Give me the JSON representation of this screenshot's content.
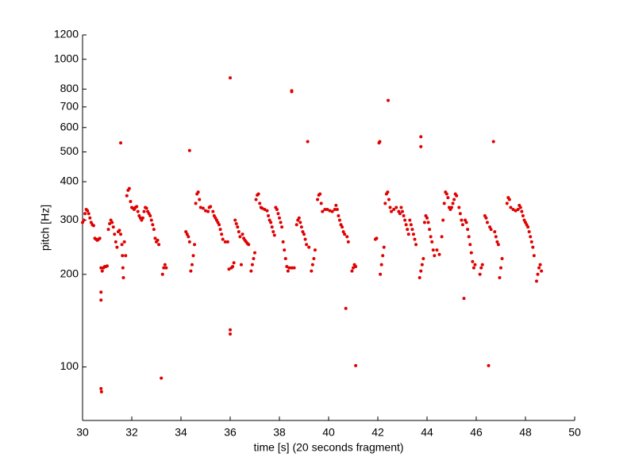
{
  "chart_data": {
    "type": "scatter",
    "color": "#e00000",
    "log_y": true,
    "xlabel": "time [s] (20 seconds fragment)",
    "ylabel": "pitch [Hz]",
    "xlim": [
      30,
      50
    ],
    "xticks": [
      30,
      32,
      34,
      36,
      38,
      40,
      42,
      44,
      46,
      48,
      50
    ],
    "ylim": [
      67,
      1200
    ],
    "yticks": [
      100,
      200,
      300,
      400,
      500,
      600,
      700,
      800,
      1000,
      1200
    ],
    "x": [
      30.0,
      30.05,
      30.1,
      30.15,
      30.2,
      30.25,
      30.3,
      30.35,
      30.4,
      30.45,
      30.5,
      30.55,
      30.6,
      30.65,
      30.7,
      30.75,
      30.75,
      30.75,
      30.75,
      30.77,
      30.8,
      30.85,
      30.9,
      30.95,
      31.0,
      31.05,
      31.1,
      31.15,
      31.2,
      31.25,
      31.3,
      31.35,
      31.4,
      31.45,
      31.5,
      31.55,
      31.55,
      31.6,
      31.62,
      31.64,
      31.66,
      31.7,
      31.75,
      31.8,
      31.85,
      31.9,
      31.95,
      32.0,
      32.05,
      32.1,
      32.15,
      32.2,
      32.25,
      32.3,
      32.35,
      32.4,
      32.45,
      32.5,
      32.55,
      32.6,
      32.65,
      32.7,
      32.75,
      32.8,
      32.85,
      32.9,
      32.95,
      33.0,
      33.05,
      33.1,
      33.2,
      33.25,
      33.3,
      33.35,
      33.4,
      34.2,
      34.25,
      34.3,
      34.35,
      34.35,
      34.4,
      34.45,
      34.5,
      34.55,
      34.6,
      34.65,
      34.7,
      34.75,
      34.8,
      34.9,
      35.0,
      35.1,
      35.15,
      35.2,
      35.3,
      35.35,
      35.4,
      35.45,
      35.5,
      35.55,
      35.6,
      35.65,
      35.7,
      35.8,
      35.9,
      35.95,
      36.0,
      36.0,
      36.0,
      36.05,
      36.1,
      36.15,
      36.2,
      36.25,
      36.3,
      36.35,
      36.4,
      36.45,
      36.5,
      36.55,
      36.6,
      36.65,
      36.7,
      36.75,
      36.85,
      36.9,
      36.95,
      37.0,
      37.05,
      37.1,
      37.15,
      37.2,
      37.25,
      37.3,
      37.4,
      37.5,
      37.55,
      37.6,
      37.65,
      37.7,
      37.75,
      37.8,
      37.85,
      37.9,
      37.95,
      38.0,
      38.05,
      38.1,
      38.15,
      38.2,
      38.25,
      38.3,
      38.35,
      38.5,
      38.5,
      38.4,
      38.5,
      38.6,
      38.7,
      38.75,
      38.8,
      38.85,
      38.9,
      38.95,
      39.0,
      39.05,
      39.1,
      39.15,
      39.2,
      39.3,
      39.35,
      39.4,
      39.45,
      39.55,
      39.6,
      39.65,
      39.7,
      39.75,
      39.85,
      39.95,
      40.05,
      40.15,
      40.25,
      40.3,
      40.35,
      40.4,
      40.45,
      40.5,
      40.55,
      40.6,
      40.65,
      40.7,
      40.75,
      40.8,
      40.95,
      41.0,
      41.05,
      41.1,
      41.1,
      41.9,
      41.95,
      42.05,
      42.08,
      42.1,
      42.15,
      42.2,
      42.25,
      42.3,
      42.35,
      42.4,
      42.42,
      42.45,
      42.5,
      42.55,
      42.65,
      42.75,
      42.85,
      42.9,
      42.95,
      43.0,
      43.05,
      43.1,
      43.15,
      43.2,
      43.25,
      43.3,
      43.35,
      43.4,
      43.45,
      43.5,
      43.55,
      43.7,
      43.75,
      43.8,
      43.85,
      43.75,
      43.75,
      43.9,
      43.95,
      44.0,
      44.05,
      44.1,
      44.15,
      44.2,
      44.25,
      44.3,
      44.4,
      44.5,
      44.6,
      44.65,
      44.7,
      44.75,
      44.8,
      44.85,
      44.9,
      44.95,
      45.0,
      45.05,
      45.1,
      45.15,
      45.2,
      45.3,
      45.35,
      45.4,
      45.45,
      45.5,
      45.55,
      45.6,
      45.65,
      45.7,
      45.75,
      45.8,
      45.85,
      45.9,
      45.95,
      46.15,
      46.2,
      46.25,
      46.35,
      46.4,
      46.45,
      46.5,
      46.55,
      46.6,
      46.7,
      46.75,
      46.8,
      46.85,
      46.9,
      46.95,
      47.0,
      47.05,
      47.25,
      47.3,
      47.35,
      47.4,
      47.5,
      47.6,
      47.7,
      47.75,
      47.8,
      47.85,
      47.9,
      47.95,
      48.0,
      48.05,
      48.1,
      48.15,
      48.2,
      48.25,
      48.3,
      48.35,
      48.45,
      48.5,
      48.55,
      48.6,
      48.65
    ],
    "values": [
      295,
      300,
      315,
      325,
      322,
      315,
      305,
      295,
      290,
      288,
      262,
      260,
      258,
      260,
      262,
      210,
      175,
      165,
      85,
      83,
      205,
      210,
      212,
      212,
      213,
      280,
      292,
      300,
      295,
      285,
      270,
      255,
      245,
      275,
      278,
      535,
      270,
      250,
      230,
      210,
      195,
      255,
      230,
      360,
      375,
      380,
      345,
      330,
      328,
      325,
      330,
      332,
      320,
      310,
      305,
      300,
      305,
      320,
      330,
      328,
      320,
      315,
      310,
      300,
      290,
      280,
      262,
      255,
      258,
      250,
      92,
      200,
      210,
      215,
      210,
      275,
      270,
      265,
      505,
      255,
      205,
      215,
      230,
      250,
      340,
      365,
      370,
      350,
      330,
      328,
      322,
      320,
      330,
      332,
      320,
      310,
      305,
      300,
      295,
      290,
      280,
      270,
      260,
      255,
      255,
      208,
      870,
      132,
      128,
      210,
      212,
      218,
      300,
      292,
      285,
      275,
      265,
      215,
      270,
      262,
      258,
      255,
      252,
      250,
      205,
      215,
      225,
      235,
      350,
      362,
      365,
      340,
      330,
      328,
      325,
      322,
      310,
      300,
      295,
      285,
      275,
      268,
      330,
      325,
      315,
      305,
      295,
      285,
      255,
      240,
      225,
      212,
      205,
      790,
      785,
      210,
      210,
      210,
      290,
      300,
      305,
      295,
      285,
      275,
      270,
      260,
      250,
      540,
      245,
      205,
      215,
      225,
      240,
      350,
      362,
      365,
      340,
      320,
      325,
      325,
      322,
      320,
      325,
      335,
      325,
      310,
      300,
      290,
      285,
      275,
      270,
      155,
      265,
      255,
      205,
      210,
      215,
      101,
      212,
      260,
      262,
      535,
      540,
      200,
      215,
      230,
      245,
      340,
      365,
      370,
      735,
      350,
      330,
      320,
      325,
      330,
      320,
      315,
      330,
      320,
      310,
      300,
      290,
      280,
      270,
      300,
      290,
      280,
      270,
      260,
      250,
      195,
      205,
      215,
      225,
      560,
      520,
      295,
      310,
      305,
      295,
      280,
      265,
      255,
      240,
      230,
      240,
      232,
      265,
      300,
      340,
      370,
      365,
      355,
      330,
      325,
      330,
      340,
      350,
      365,
      360,
      330,
      315,
      300,
      290,
      167,
      300,
      295,
      280,
      265,
      250,
      235,
      220,
      210,
      215,
      200,
      210,
      215,
      310,
      305,
      295,
      101,
      285,
      280,
      540,
      275,
      265,
      255,
      250,
      195,
      210,
      225,
      340,
      355,
      350,
      330,
      325,
      322,
      325,
      335,
      330,
      320,
      310,
      300,
      295,
      290,
      285,
      275,
      265,
      255,
      245,
      230,
      190,
      200,
      210,
      215,
      205
    ]
  }
}
